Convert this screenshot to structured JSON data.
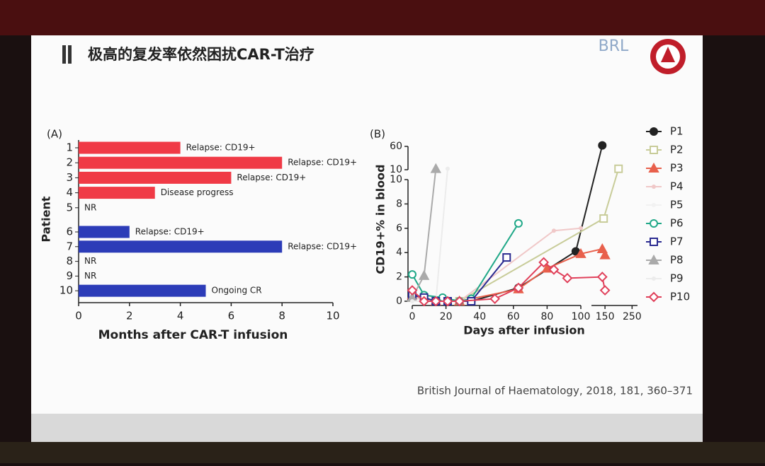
{
  "slide": {
    "title": "极高的复发率依然困扰CAR-T治疗",
    "logo": "BRL",
    "citation": "British Journal of Haematology, 2018, 181, 360–371"
  },
  "chart_data": [
    {
      "type": "bar",
      "orientation": "horizontal",
      "panel": "(A)",
      "ylabel": "Patient",
      "xlabel": "Months after CAR-T infusion",
      "categories": [
        "1",
        "2",
        "3",
        "4",
        "5",
        "6",
        "7",
        "8",
        "9",
        "10"
      ],
      "values": [
        4,
        8,
        6,
        3,
        null,
        2,
        8,
        null,
        null,
        5
      ],
      "colors": [
        "#f03a46",
        "#f03a46",
        "#f03a46",
        "#f03a46",
        null,
        "#2c3cb8",
        "#2c3cb8",
        null,
        null,
        "#2c3cb8"
      ],
      "annotations": [
        "Relapse: CD19+",
        "Relapse: CD19+",
        "Relapse: CD19+",
        "Disease progress",
        "NR",
        "Relapse: CD19+",
        "Relapse: CD19+",
        "NR",
        "NR",
        "Ongoing CR"
      ],
      "xlim": [
        0,
        10
      ],
      "xticks": [
        0,
        2,
        4,
        6,
        8,
        10
      ]
    },
    {
      "type": "line",
      "panel": "(B)",
      "ylabel": "CD19+% in blood",
      "xlabel": "Days after infusion",
      "x_segments": [
        {
          "xlim": [
            0,
            100
          ],
          "xticks": [
            0,
            20,
            40,
            60,
            80,
            100
          ]
        },
        {
          "xlim": [
            100,
            270
          ],
          "xticks": [
            150,
            250
          ]
        }
      ],
      "y_segments": [
        {
          "ylim": [
            0,
            10
          ],
          "yticks": [
            0,
            2,
            4,
            6,
            8,
            10
          ]
        },
        {
          "ylim": [
            10,
            60
          ],
          "yticks": [
            10,
            60
          ]
        }
      ],
      "series": [
        {
          "name": "P1",
          "color": "#222222",
          "marker": "circle",
          "x": [
            0,
            7,
            14,
            21,
            28,
            35,
            63,
            97,
            140
          ],
          "values": [
            0.7,
            0.2,
            0,
            0,
            0,
            0,
            1.1,
            4.1,
            62
          ]
        },
        {
          "name": "P2",
          "color": "#c8cc99",
          "marker": "square",
          "x": [
            0,
            7,
            14,
            28,
            145,
            200
          ],
          "values": [
            0.3,
            0.2,
            0,
            0,
            6.8,
            12
          ]
        },
        {
          "name": "P3",
          "color": "#e8604c",
          "marker": "triangle",
          "x": [
            0,
            14,
            28,
            63,
            80,
            100,
            140,
            150
          ],
          "values": [
            0.5,
            0,
            0,
            1.0,
            2.7,
            3.9,
            4.3,
            3.8
          ]
        },
        {
          "name": "P4",
          "color": "#f0c8c8",
          "x": [
            0,
            14,
            28,
            84,
            100
          ],
          "values": [
            0.3,
            0,
            0,
            5.8,
            6
          ]
        },
        {
          "name": "P5",
          "color": "#f2f2f2",
          "x": [
            0,
            14,
            28
          ],
          "values": [
            0,
            0,
            0
          ]
        },
        {
          "name": "P6",
          "color": "#20a888",
          "marker": "circle",
          "x": [
            0,
            7,
            18,
            28,
            35,
            63
          ],
          "values": [
            2.2,
            0.5,
            0.3,
            0,
            0.2,
            6.4
          ]
        },
        {
          "name": "P7",
          "color": "#2a2a90",
          "marker": "square",
          "x": [
            0,
            7,
            14,
            21,
            35,
            56
          ],
          "values": [
            0.5,
            0.3,
            0,
            0,
            0,
            3.6
          ]
        },
        {
          "name": "P8",
          "color": "#aaaaaa",
          "marker": "triangle",
          "x": [
            0,
            7,
            14
          ],
          "values": [
            0.3,
            2.1,
            12
          ]
        },
        {
          "name": "P9",
          "color": "#ececec",
          "x": [
            0,
            14,
            21
          ],
          "values": [
            0,
            0,
            12
          ]
        },
        {
          "name": "P10",
          "color": "#e0405a",
          "marker": "diamond",
          "x": [
            0,
            7,
            14,
            21,
            28,
            49,
            63,
            78,
            84,
            92,
            140,
            150
          ],
          "values": [
            0.9,
            0,
            0,
            0,
            0,
            0.2,
            1.1,
            3.2,
            2.6,
            1.9,
            2.0,
            0.9
          ]
        }
      ]
    }
  ]
}
